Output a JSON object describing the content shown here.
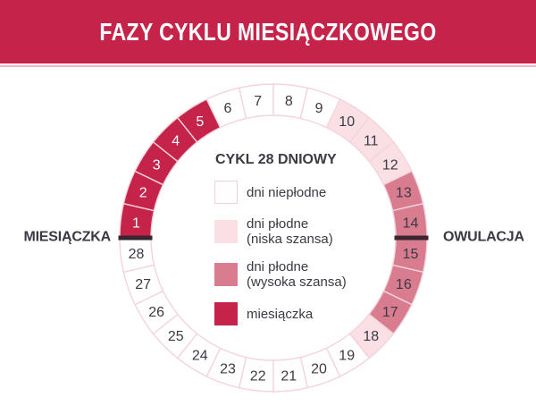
{
  "header": {
    "title": "FAZY CYKLU MIESIĄCZKOWEGO",
    "background": "#C5234A",
    "text_color": "#FFFFFF",
    "divider_color": "#ECB7C2"
  },
  "legend": {
    "title": "CYKL 28 DNIOWY",
    "items": [
      {
        "label_line1": "dni niepłodne",
        "label_line2": "",
        "color": "#FFFFFF",
        "border": "#EFD2D9"
      },
      {
        "label_line1": "dni płodne",
        "label_line2": "(niska szansa)",
        "color": "#FADFE5",
        "border": "#FADFE5"
      },
      {
        "label_line1": "dni płodne",
        "label_line2": "(wysoka szansa)",
        "color": "#D97C90",
        "border": "#D97C90"
      },
      {
        "label_line1": "miesiączka",
        "label_line2": "",
        "color": "#C5234A",
        "border": "#C5234A"
      }
    ]
  },
  "wheel": {
    "total_days": 28,
    "phases": [
      {
        "name": "miesiączka",
        "days": [
          1,
          2,
          3,
          4,
          5
        ],
        "color": "#C5234A",
        "number_color": "#FFFFFF"
      },
      {
        "name": "dni niepłodne",
        "days": [
          6,
          7,
          8,
          9,
          19,
          20,
          21,
          22,
          23,
          24,
          25,
          26,
          27,
          28
        ],
        "color": "#FFFFFF",
        "number_color": "#3A3A44"
      },
      {
        "name": "dni płodne (niska szansa)",
        "days": [
          10,
          11,
          12,
          18
        ],
        "color": "#FADFE5",
        "number_color": "#3A3A44"
      },
      {
        "name": "dni płodne (wysoka szansa)",
        "days": [
          13,
          14,
          15,
          16,
          17
        ],
        "color": "#D97C90",
        "number_color": "#3A3A44"
      }
    ],
    "markers": [
      {
        "label": "MIESIĄCZKA",
        "side": "left",
        "between_days": [
          28,
          1
        ]
      },
      {
        "label": "OWULACJA",
        "side": "right",
        "between_days": [
          14,
          15
        ]
      }
    ]
  },
  "colors": {
    "segment_border": "#F3D4DB",
    "marker_line": "#39252F",
    "text_dark": "#3A3A44"
  }
}
